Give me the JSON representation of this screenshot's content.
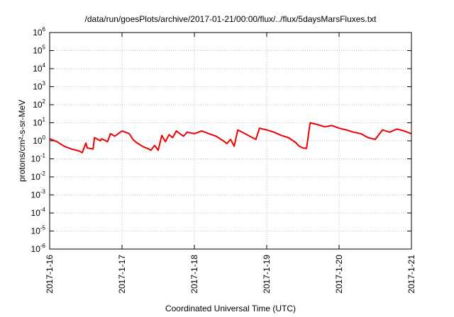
{
  "chart_data": {
    "type": "line",
    "title": "/data/run/goesPlots/archive/2017-01-21/00:00/flux/../flux/5daysMarsFluxes.txt",
    "xlabel": "Coordinated Universal Time (UTC)",
    "ylabel": "protons/cm²-s-sr-MeV",
    "yscale": "log",
    "ylim": [
      1e-06,
      1000000.0
    ],
    "xlim": [
      "2017-01-16 00:00",
      "2017-01-21 00:00"
    ],
    "grid": true,
    "x_ticks": [
      "2017-1-16",
      "2017-1-17",
      "2017-1-18",
      "2017-1-19",
      "2017-1-20",
      "2017-1-21"
    ],
    "y_ticks": [
      {
        "base": "10",
        "exp": "-6"
      },
      {
        "base": "10",
        "exp": "-5"
      },
      {
        "base": "10",
        "exp": "-4"
      },
      {
        "base": "10",
        "exp": "-3"
      },
      {
        "base": "10",
        "exp": "-2"
      },
      {
        "base": "10",
        "exp": "-1"
      },
      {
        "base": "10",
        "exp": "0"
      },
      {
        "base": "10",
        "exp": "1"
      },
      {
        "base": "10",
        "exp": "2"
      },
      {
        "base": "10",
        "exp": "3"
      },
      {
        "base": "10",
        "exp": "4"
      },
      {
        "base": "10",
        "exp": "5"
      },
      {
        "base": "10",
        "exp": "6"
      }
    ],
    "series_style": [
      {
        "color": "#ee0000",
        "width": 2
      },
      {
        "color": "#22ee22",
        "width": 2
      },
      {
        "color": "#1e90ff",
        "width": 2
      },
      {
        "color": "#0000cc",
        "width": 2
      },
      {
        "color": "#20c0b0",
        "width": 2
      },
      {
        "color": "#f5f500",
        "width": 2
      },
      {
        "color": "#ffe060",
        "width": 2
      },
      {
        "color": "#993366",
        "width": 2
      }
    ],
    "series": [
      {
        "x_days": [
          0,
          0.1,
          0.2,
          0.3,
          0.4,
          0.45,
          0.5,
          0.52,
          0.6,
          0.62,
          0.7,
          0.72,
          0.8,
          0.84,
          0.9,
          1.0,
          1.1,
          1.15,
          1.2,
          1.3,
          1.35,
          1.4,
          1.45,
          1.5,
          1.55,
          1.6,
          1.65,
          1.7,
          1.75,
          1.8,
          1.85,
          1.9,
          2.0,
          2.1,
          2.2,
          2.3,
          2.4,
          2.45,
          2.5,
          2.55,
          2.6,
          2.7,
          2.8,
          2.85,
          2.9,
          3.0,
          3.1,
          3.2,
          3.3,
          3.4,
          3.45,
          3.5,
          3.55,
          3.6,
          3.7,
          3.8,
          3.9,
          4.0,
          4.1,
          4.2,
          4.3,
          4.4,
          4.5,
          4.6,
          4.7,
          4.8,
          4.9,
          5.0
        ],
        "y": [
          1.3,
          0.9,
          0.5,
          0.35,
          0.28,
          0.22,
          0.75,
          0.4,
          0.35,
          1.5,
          1.0,
          1.3,
          0.9,
          2.5,
          1.8,
          3.5,
          2.5,
          1.2,
          0.8,
          0.45,
          0.38,
          0.3,
          0.55,
          0.3,
          2.0,
          0.9,
          2.2,
          1.5,
          3.5,
          2.5,
          1.8,
          3.0,
          2.5,
          3.5,
          2.5,
          1.8,
          1.0,
          0.7,
          1.2,
          0.5,
          4.0,
          2.5,
          1.5,
          1.2,
          5.0,
          4.0,
          3.0,
          2.0,
          1.5,
          0.8,
          0.5,
          0.4,
          0.38,
          10,
          8,
          6,
          7,
          5,
          4,
          3,
          2.5,
          1.5,
          1.2,
          4.0,
          3.0,
          4.5,
          3.5,
          2.5
        ]
      }
    ]
  }
}
